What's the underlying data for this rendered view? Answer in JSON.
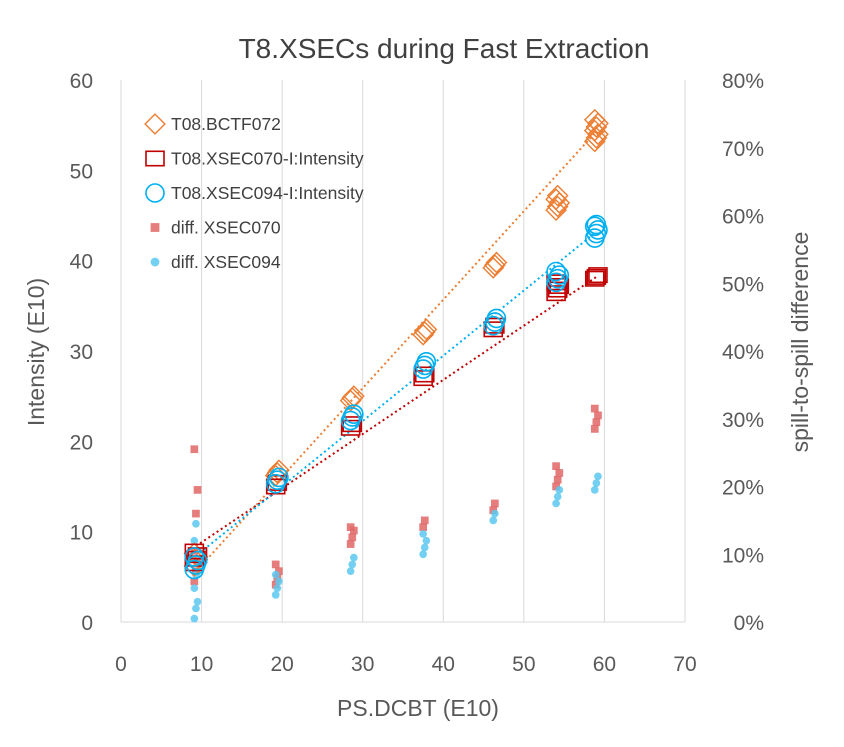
{
  "chart_data": {
    "type": "scatter",
    "title": "T8.XSECs during Fast Extraction",
    "xlabel": "PS.DCBT (E10)",
    "ylabel": "Intensity (E10)",
    "y2label": "spill-to-spill difference",
    "xlim": [
      0,
      70
    ],
    "ylim": [
      0,
      60
    ],
    "y2lim": [
      0,
      0.8
    ],
    "x_ticks": [
      "0",
      "10",
      "20",
      "30",
      "40",
      "50",
      "60",
      "70"
    ],
    "y_ticks": [
      "0",
      "10",
      "20",
      "30",
      "40",
      "50",
      "60"
    ],
    "y2_ticks": [
      "0%",
      "10%",
      "20%",
      "30%",
      "40%",
      "50%",
      "60%",
      "70%",
      "80%"
    ],
    "grid": "vertical only",
    "legend_position": "top-left",
    "colors": {
      "bctf": "#ed7d31",
      "xsec070": "#c00000",
      "xsec094": "#00b0f0",
      "diff070": "#e06666",
      "diff094": "#5bc8f0",
      "grid": "#d9d9d9"
    },
    "series": [
      {
        "name": "T08.BCTF072",
        "axis": "left",
        "marker": "diamond-open",
        "color": "#ed7d31",
        "x_groups": [
          9.3,
          19.4,
          28.7,
          37.7,
          46.4,
          54.2,
          59.0
        ],
        "y_groups": [
          [
            6.2,
            6.8,
            7.2,
            7.6
          ],
          [
            16.2,
            16.5,
            16.8
          ],
          [
            24.5,
            24.8,
            25.0
          ],
          [
            31.8,
            32.1,
            32.4
          ],
          [
            39.2,
            39.5,
            39.8
          ],
          [
            45.6,
            46.0,
            46.4,
            46.8,
            47.2
          ],
          [
            53.2,
            53.6,
            54.0,
            54.4,
            54.8,
            55.2,
            55.6
          ]
        ]
      },
      {
        "name": "T08.XSEC070-I:Intensity",
        "axis": "left",
        "marker": "square-open",
        "color": "#c00000",
        "x_groups": [
          9.3,
          19.4,
          28.7,
          37.7,
          46.4,
          54.2,
          59.0
        ],
        "y_groups": [
          [
            6.5,
            7.0,
            7.4,
            7.8
          ],
          [
            15.0,
            15.4
          ],
          [
            21.5,
            21.9
          ],
          [
            27.0,
            27.4
          ],
          [
            32.4,
            32.8
          ],
          [
            36.4,
            36.8,
            37.2,
            37.6
          ],
          [
            38.0,
            38.2,
            38.4
          ]
        ]
      },
      {
        "name": "T08.XSEC094-I:Intensity",
        "axis": "left",
        "marker": "circle-open",
        "color": "#00b0f0",
        "x_groups": [
          9.3,
          19.4,
          28.7,
          37.7,
          46.4,
          54.2,
          59.0
        ],
        "y_groups": [
          [
            5.8,
            6.3,
            6.8,
            7.2
          ],
          [
            15.3,
            15.7,
            16.0
          ],
          [
            22.3,
            22.7,
            23.0
          ],
          [
            28.0,
            28.4,
            28.8
          ],
          [
            32.8,
            33.2,
            33.6
          ],
          [
            37.6,
            38.0,
            38.4,
            38.8
          ],
          [
            42.5,
            43.0,
            43.4,
            43.8,
            44.0
          ]
        ]
      },
      {
        "name": "diff. XSEC070",
        "axis": "right",
        "marker": "square-filled",
        "color": "#e06666",
        "x_groups": [
          9.3,
          19.4,
          28.7,
          37.7,
          46.4,
          54.2,
          59.0
        ],
        "y_groups": [
          [
            0.06,
            0.075,
            0.09,
            0.105,
            0.16,
            0.195,
            0.255
          ],
          [
            0.055,
            0.065,
            0.075,
            0.085
          ],
          [
            0.115,
            0.125,
            0.135,
            0.14
          ],
          [
            0.14,
            0.15
          ],
          [
            0.165,
            0.175
          ],
          [
            0.2,
            0.21,
            0.22,
            0.23
          ],
          [
            0.285,
            0.295,
            0.305,
            0.315
          ]
        ]
      },
      {
        "name": "diff. XSEC094",
        "axis": "right",
        "marker": "circle-filled",
        "color": "#5bc8f0",
        "x_groups": [
          9.3,
          19.4,
          28.7,
          37.7,
          46.4,
          54.2,
          59.0
        ],
        "y_groups": [
          [
            0.005,
            0.02,
            0.03,
            0.05,
            0.07,
            0.09,
            0.12,
            0.145
          ],
          [
            0.04,
            0.05,
            0.06,
            0.07
          ],
          [
            0.075,
            0.085,
            0.095
          ],
          [
            0.1,
            0.11,
            0.12,
            0.13
          ],
          [
            0.15,
            0.16
          ],
          [
            0.175,
            0.185,
            0.195
          ],
          [
            0.195,
            0.205,
            0.215
          ]
        ]
      }
    ],
    "trendlines": [
      {
        "series": "T08.BCTF072",
        "color": "#ed7d31",
        "x": [
          9.3,
          59.0
        ],
        "y": [
          5.6,
          54.3
        ]
      },
      {
        "series": "T08.XSEC070-I:Intensity",
        "color": "#c00000",
        "x": [
          9.3,
          59.0
        ],
        "y": [
          8.4,
          38.2
        ]
      },
      {
        "series": "T08.XSEC094-I:Intensity",
        "color": "#00b0f0",
        "x": [
          9.3,
          59.0
        ],
        "y": [
          7.3,
          43.2
        ]
      }
    ]
  }
}
